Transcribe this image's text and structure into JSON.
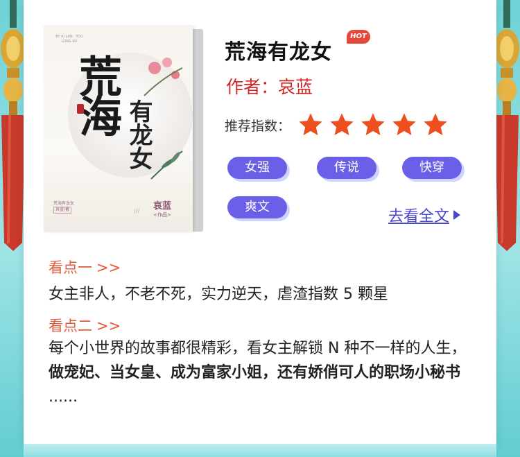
{
  "book": {
    "title": "荒海有龙女",
    "badge": "HOT",
    "author_line": "作者：哀蓝",
    "cover": {
      "calligraphy_big": "荒海",
      "calligraphy_small": "有龙女",
      "author_name": "哀蓝",
      "author_suffix": "<作品>",
      "mini_title": "荒海有龙女",
      "mini_box": "哀蓝/著"
    }
  },
  "rating": {
    "label": "推荐指数：",
    "stars": 5,
    "max": 5,
    "color": "#ef4e1e"
  },
  "tags": [
    "女强",
    "传说",
    "快穿",
    "爽文"
  ],
  "read_more": "去看全文",
  "highlights": [
    {
      "title": "看点一",
      "arrow": ">>",
      "text": "女主非人，不老不死，实力逆天，虐渣指数 5 颗星"
    },
    {
      "title": "看点二",
      "arrow": ">>",
      "text_plain": "每个小世界的故事都很精彩，看女主解锁 N 种不一样的人生，",
      "text_bold": "做宠妃、当女皇、成为富家小姐，还有娇俏可人的职场小秘书",
      "text_tail": " ......"
    }
  ],
  "colors": {
    "accent_tag": "#6a5fe6",
    "author_red": "#d52424",
    "highlight_title": "#e35a3a",
    "link": "#4a48c8"
  }
}
